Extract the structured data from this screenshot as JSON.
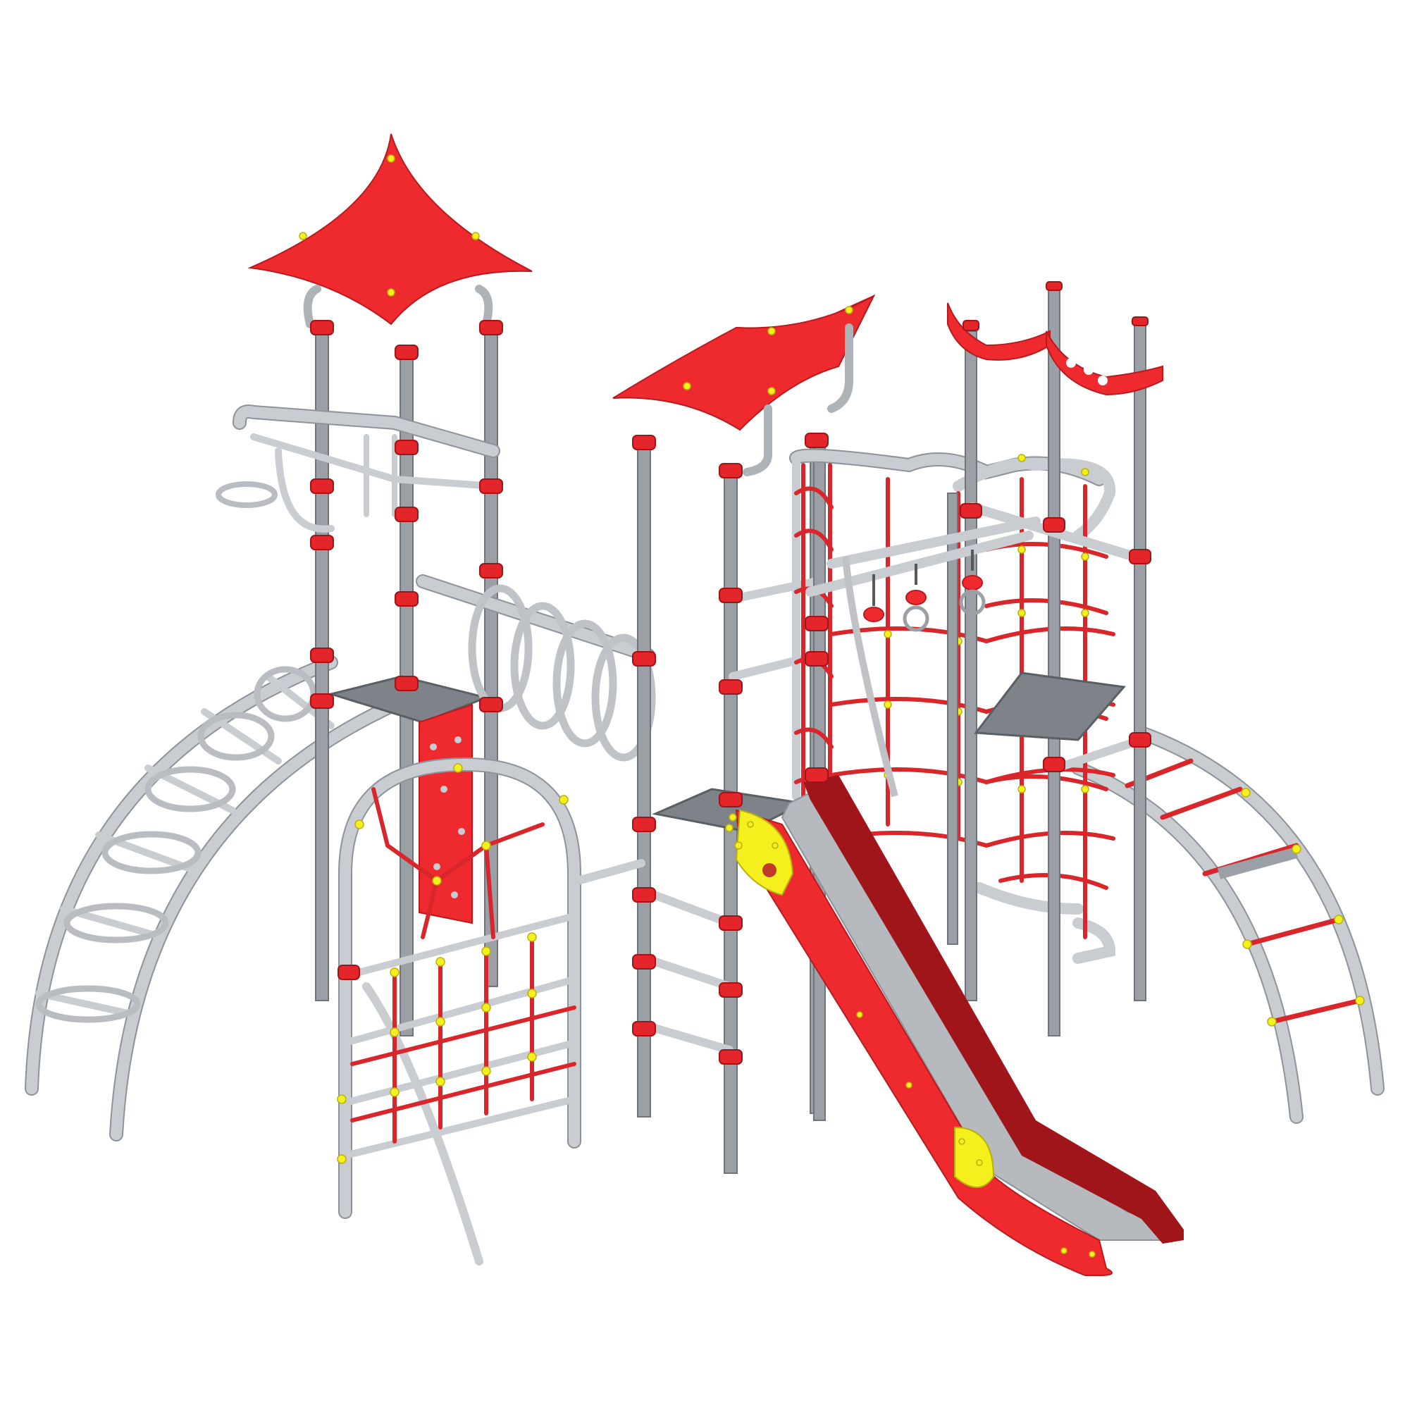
{
  "scene": {
    "colors": {
      "frame": "#c9cdd1",
      "pole": "#9aa0a6",
      "roof": "#ee2a2e",
      "clamp": "#e4262b",
      "bolt": "#f6ef1e",
      "deck": "#7d8389",
      "slide_bed": "#b6babe"
    },
    "components": [
      "pyramid-roof-icon",
      "curved-roof-icon",
      "wave-panel-icon",
      "left-arch-ladder-icon",
      "right-arch-ladder-icon",
      "ring-tunnel-icon",
      "rope-net-arch-icon",
      "climbing-wall-icon",
      "rope-cage-icon",
      "gymnastic-rings-icon",
      "slide-icon",
      "rung-ladder-icon"
    ]
  }
}
